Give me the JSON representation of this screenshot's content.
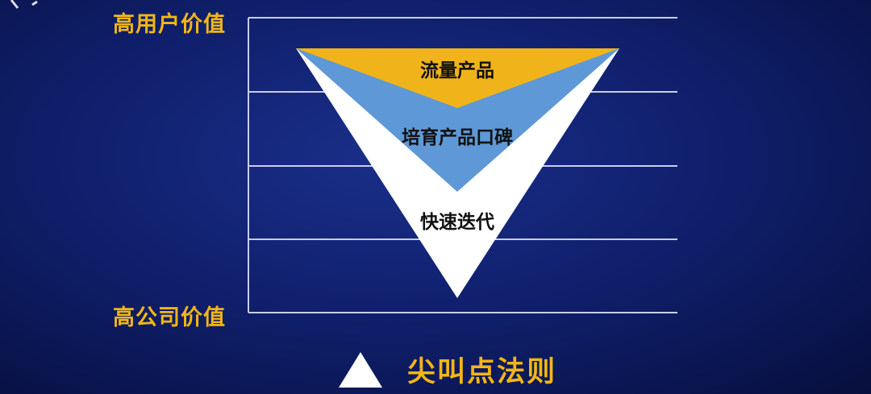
{
  "axis": {
    "top_label": "高用户价值",
    "bottom_label": "高公司价值"
  },
  "layers": [
    {
      "label": "流量产品",
      "color": "#f0b41a"
    },
    {
      "label": "培育产品口碑",
      "color": "#5f98d6"
    },
    {
      "label": "快速迭代",
      "color": "#ffffff"
    }
  ],
  "caption": {
    "text": "尖叫点法则",
    "icon": "triangle-icon"
  },
  "colors": {
    "accent": "#f2b616",
    "grid": "#c8cde8"
  }
}
